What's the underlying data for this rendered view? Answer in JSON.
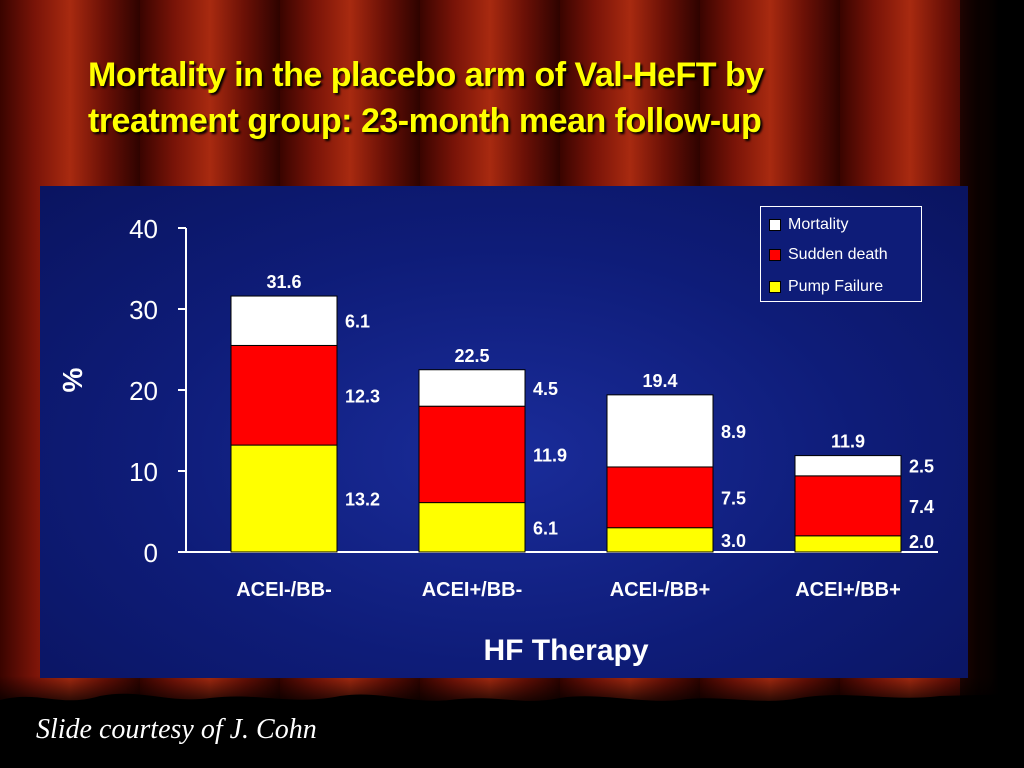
{
  "slide": {
    "title_line1": "Mortality in the placebo arm of Val-HeFT by",
    "title_line2": "treatment group: 23-month mean follow-up",
    "credit": "Slide courtesy of J. Cohn"
  },
  "colors": {
    "title": "#ffff00",
    "panel": "#0e1c78",
    "pump_failure": "#ffff00",
    "sudden_death": "#ff0000",
    "mortality": "#ffffff"
  },
  "chart_data": {
    "type": "bar",
    "stacked": true,
    "categories": [
      "ACEI-/BB-",
      "ACEI+/BB-",
      "ACEI-/BB+",
      "ACEI+/BB+"
    ],
    "series": [
      {
        "name": "Pump Failure",
        "values": [
          13.2,
          6.1,
          3.0,
          2.0
        ]
      },
      {
        "name": "Sudden death",
        "values": [
          12.3,
          11.9,
          7.5,
          7.4
        ]
      },
      {
        "name": "Mortality",
        "values": [
          6.1,
          4.5,
          8.9,
          2.5
        ]
      }
    ],
    "segment_labels": [
      [
        "13.2",
        "12.3",
        "6.1"
      ],
      [
        "6.1",
        "11.9",
        "4.5"
      ],
      [
        "3.0",
        "7.5",
        "8.9"
      ],
      [
        "2.0",
        "7.4",
        "2.5"
      ]
    ],
    "totals": [
      "31.6",
      "22.5",
      "19.4",
      "11.9"
    ],
    "xlabel": "HF Therapy",
    "ylabel": "%",
    "ylim": [
      0,
      40
    ],
    "yticks": [
      "0",
      "10",
      "20",
      "30",
      "40"
    ],
    "legend": [
      "Mortality",
      "Sudden death",
      "Pump Failure"
    ],
    "legend_position": "top-right",
    "grid": false
  }
}
